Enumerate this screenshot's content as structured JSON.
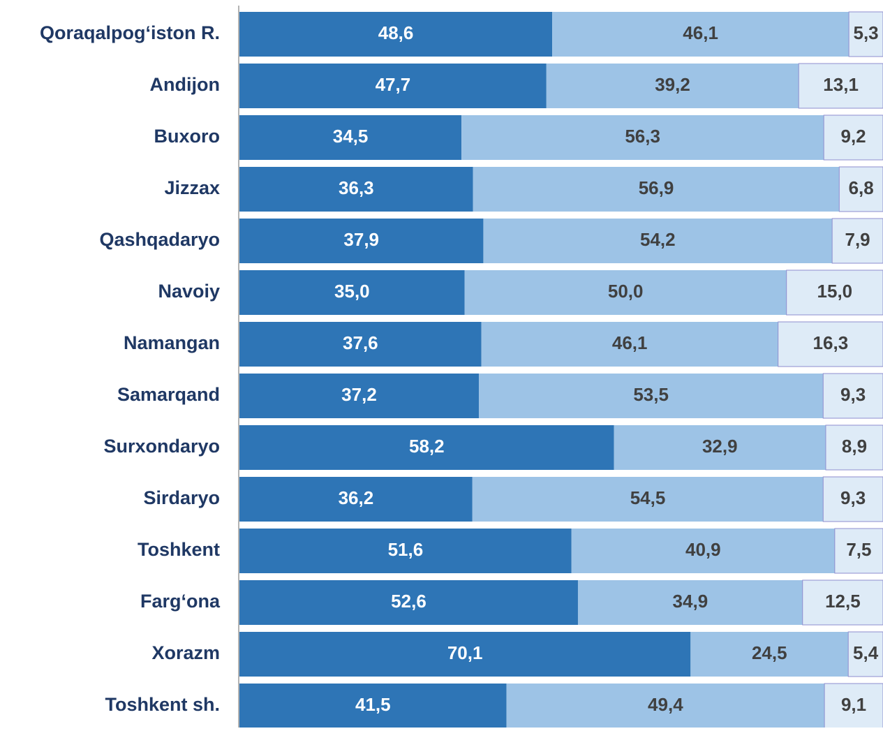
{
  "chart_data": {
    "type": "stacked_bar_horizontal",
    "categories": [
      "Qoraqalpog‘iston R.",
      "Andijon",
      "Buxoro",
      "Jizzax",
      "Qashqadaryo",
      "Navoiy",
      "Namangan",
      "Samarqand",
      "Surxondaryo",
      "Sirdaryo",
      "Toshkent",
      "Farg‘ona",
      "Xorazm",
      "Toshkent sh."
    ],
    "xlim": [
      0,
      100
    ],
    "series": [
      {
        "color": "#2e75b6",
        "values": [
          48.6,
          47.7,
          34.5,
          36.3,
          37.9,
          35.0,
          37.6,
          37.2,
          58.2,
          36.2,
          51.6,
          52.6,
          70.1,
          41.5
        ],
        "value_labels": [
          "48,6",
          "47,7",
          "34,5",
          "36,3",
          "37,9",
          "35,0",
          "37,6",
          "37,2",
          "58,2",
          "36,2",
          "51,6",
          "52,6",
          "70,1",
          "41,5"
        ]
      },
      {
        "color": "#9dc3e6",
        "values": [
          46.1,
          39.2,
          56.3,
          56.9,
          54.2,
          50.0,
          46.1,
          53.5,
          32.9,
          54.5,
          40.9,
          34.9,
          24.5,
          49.4
        ],
        "value_labels": [
          "46,1",
          "39,2",
          "56,3",
          "56,9",
          "54,2",
          "50,0",
          "46,1",
          "53,5",
          "32,9",
          "54,5",
          "40,9",
          "34,9",
          "24,5",
          "49,4"
        ]
      },
      {
        "color": "#deebf7",
        "values": [
          5.3,
          13.1,
          9.2,
          6.8,
          7.9,
          15.0,
          16.3,
          9.3,
          8.9,
          9.3,
          7.5,
          12.5,
          5.4,
          9.1
        ],
        "value_labels": [
          "5,3",
          "13,1",
          "9,2",
          "6,8",
          "7,9",
          "15,0",
          "16,3",
          "9,3",
          "8,9",
          "9,3",
          "7,5",
          "12,5",
          "5,4",
          "9,1"
        ]
      }
    ]
  }
}
